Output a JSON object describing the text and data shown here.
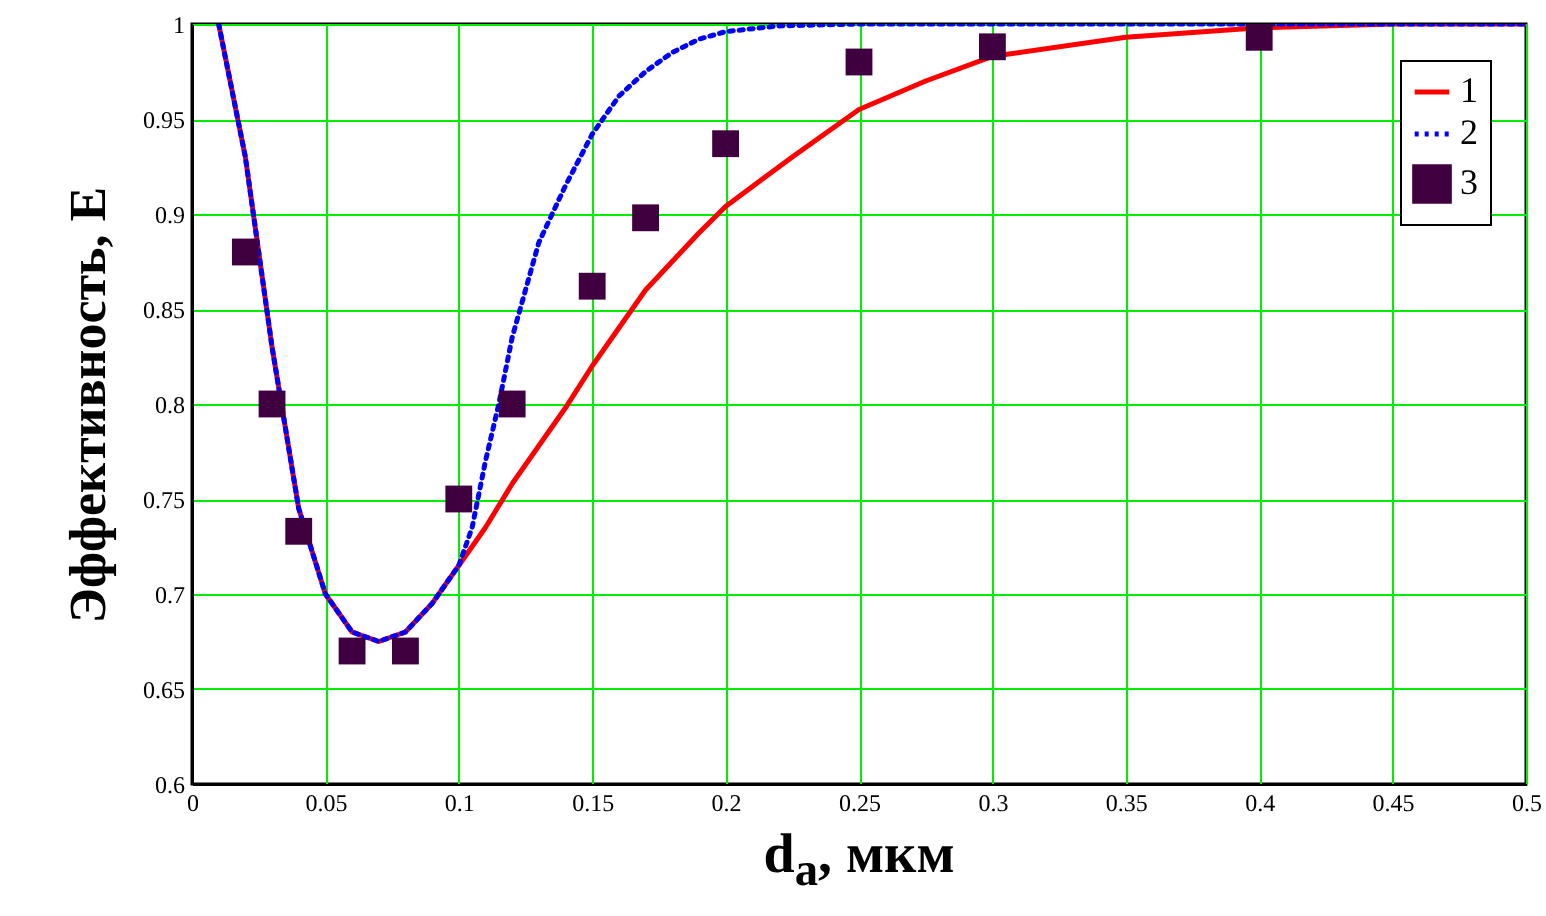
{
  "chart_data": {
    "type": "line",
    "xlabel": "d$_{a}$, мкм",
    "ylabel": "Эффективность, E",
    "xlim": [
      0,
      0.5
    ],
    "ylim": [
      0.6,
      1
    ],
    "xticks": [
      0,
      0.05,
      0.1,
      0.15,
      0.2,
      0.25,
      0.3,
      0.35,
      0.4,
      0.45,
      0.5
    ],
    "yticks": [
      0.6,
      0.65,
      0.7,
      0.75,
      0.8,
      0.85,
      0.9,
      0.95,
      1
    ],
    "grid": true,
    "legend": "top right",
    "series": [
      {
        "name": "1",
        "type": "line",
        "line_style": "solid",
        "color": "#ff0000",
        "x": [
          0.01,
          0.02,
          0.03,
          0.04,
          0.05,
          0.06,
          0.07,
          0.08,
          0.09,
          0.1,
          0.11,
          0.12,
          0.13,
          0.14,
          0.15,
          0.16,
          0.17,
          0.18,
          0.19,
          0.2,
          0.225,
          0.25,
          0.275,
          0.3,
          0.35,
          0.4,
          0.45,
          0.5
        ],
        "values": [
          1,
          0.93,
          0.83,
          0.745,
          0.7,
          0.68,
          0.675,
          0.68,
          0.695,
          0.715,
          0.735,
          0.758,
          0.778,
          0.798,
          0.82,
          0.84,
          0.86,
          0.875,
          0.89,
          0.904,
          0.93,
          0.955,
          0.97,
          0.983,
          0.993,
          0.998,
          1,
          1
        ]
      },
      {
        "name": "2",
        "type": "line",
        "line_style": "dotted",
        "color": "#0000ff",
        "x": [
          0.01,
          0.02,
          0.03,
          0.04,
          0.05,
          0.06,
          0.07,
          0.08,
          0.09,
          0.1,
          0.105,
          0.11,
          0.115,
          0.12,
          0.13,
          0.14,
          0.15,
          0.16,
          0.17,
          0.18,
          0.19,
          0.2,
          0.22,
          0.25,
          0.3,
          0.4,
          0.5
        ],
        "values": [
          1,
          0.93,
          0.83,
          0.745,
          0.7,
          0.68,
          0.675,
          0.68,
          0.695,
          0.715,
          0.735,
          0.77,
          0.8,
          0.835,
          0.885,
          0.915,
          0.942,
          0.962,
          0.975,
          0.985,
          0.992,
          0.996,
          0.999,
          1,
          1,
          1,
          1
        ]
      },
      {
        "name": "3",
        "type": "scatter",
        "marker": "square",
        "color": "#400040",
        "x": [
          0.02,
          0.03,
          0.04,
          0.06,
          0.08,
          0.1,
          0.12,
          0.15,
          0.17,
          0.2,
          0.25,
          0.3,
          0.4
        ],
        "values": [
          0.88,
          0.8,
          0.733,
          0.67,
          0.67,
          0.75,
          0.8,
          0.862,
          0.898,
          0.937,
          0.98,
          0.988,
          0.993
        ]
      }
    ]
  }
}
